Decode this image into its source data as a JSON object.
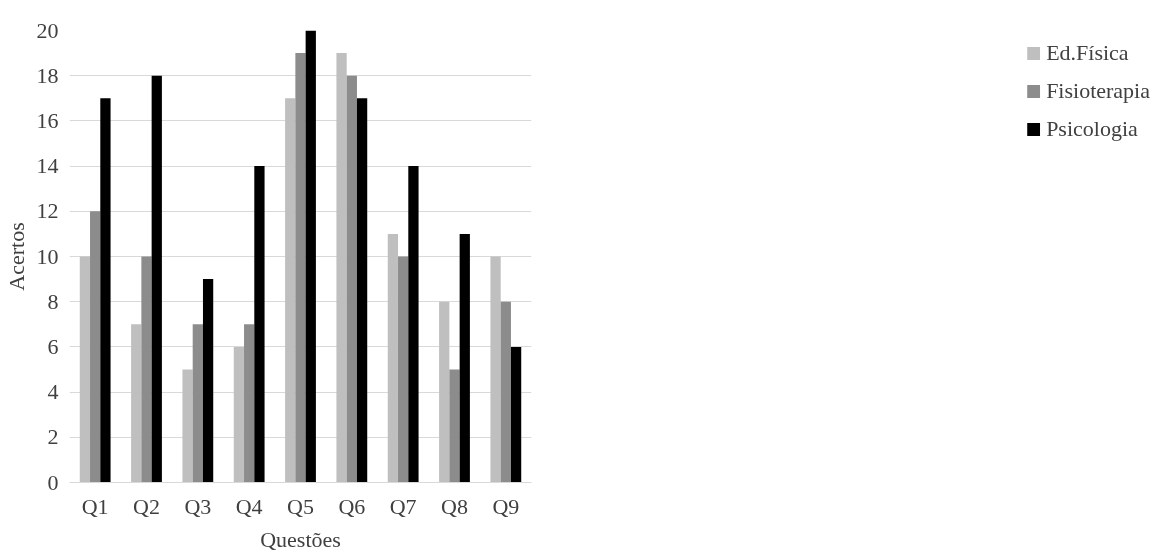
{
  "chart_data": {
    "type": "bar",
    "xlabel": "Questões",
    "ylabel": "Acertos",
    "categories": [
      "Q1",
      "Q2",
      "Q3",
      "Q4",
      "Q5",
      "Q6",
      "Q7",
      "Q8",
      "Q9"
    ],
    "series": [
      {
        "name": "Ed.Física",
        "color": "#bfbfbf",
        "values": [
          10,
          7,
          5,
          6,
          17,
          19,
          11,
          8,
          10
        ]
      },
      {
        "name": "Fisioterapia",
        "color": "#8c8c8c",
        "values": [
          12,
          10,
          7,
          7,
          19,
          18,
          10,
          5,
          8
        ]
      },
      {
        "name": "Psicologia",
        "color": "#000000",
        "values": [
          17,
          18,
          9,
          14,
          20,
          17,
          14,
          11,
          6
        ]
      }
    ],
    "ylim": [
      0,
      20
    ],
    "yticks": [
      0,
      2,
      4,
      6,
      8,
      10,
      12,
      14,
      16,
      18,
      20
    ],
    "grid": "y",
    "legend": "right"
  }
}
